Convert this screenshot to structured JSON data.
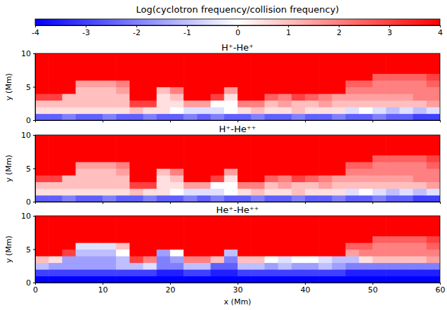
{
  "chart_data": {
    "type": "heatmap",
    "colorbar": {
      "title": "Log(cyclotron frequency/collision frequency)",
      "range": [
        -4,
        4
      ],
      "ticks": [
        -4,
        -3,
        -2,
        -1,
        0,
        1,
        2,
        3,
        4
      ]
    },
    "x_label": "x (Mm)",
    "y_label": "y (Mm)",
    "xlim": [
      0,
      60
    ],
    "xticks": [
      0,
      10,
      20,
      30,
      40,
      50,
      60
    ],
    "ylim": [
      0,
      10
    ],
    "yticks": [
      0,
      5,
      10
    ],
    "x_edges": [
      0,
      2,
      4,
      6,
      8,
      10,
      12,
      14,
      16,
      18,
      20,
      22,
      24,
      26,
      28,
      30,
      32,
      34,
      36,
      38,
      40,
      42,
      44,
      46,
      48,
      50,
      52,
      54,
      56,
      58,
      60
    ],
    "y_edges": [
      0,
      1,
      2,
      3,
      4,
      5,
      6,
      7,
      8,
      9,
      10
    ],
    "panels": [
      {
        "title": "H⁺-He⁺",
        "cells": [
          [
            -2.5,
            -2.5,
            -2,
            -2.5,
            -2.5,
            -2,
            -2.5,
            -2.5,
            -2,
            -2.5,
            -2.5,
            -2,
            -2.5,
            -2,
            -2.5,
            -2.5,
            -2,
            -2.5,
            -2.5,
            -2,
            -2.5,
            -2.5,
            -2,
            -2.5,
            -2.5,
            -2,
            -2.5,
            -2.5,
            -3,
            -3
          ],
          [
            0.5,
            0.5,
            0.5,
            0.5,
            0.5,
            0.5,
            0.5,
            1,
            0.5,
            0.5,
            0,
            -0.5,
            -0.5,
            -0.5,
            0,
            0.5,
            1,
            0.5,
            0.5,
            1,
            0.5,
            0.5,
            0.5,
            -0.5,
            0,
            -0.5,
            -1,
            -0.5,
            -1,
            -0.5
          ],
          [
            1,
            1,
            1,
            1,
            1,
            1,
            1,
            3,
            3,
            0.5,
            0.5,
            1.5,
            1.5,
            0,
            0,
            2,
            2,
            1,
            1.5,
            1,
            1,
            1.5,
            1,
            1,
            1,
            1,
            1,
            1,
            1,
            1.5
          ],
          [
            3,
            3,
            1,
            1,
            1,
            1,
            1,
            4,
            4,
            0.5,
            1,
            4,
            4,
            3,
            0.5,
            4,
            4,
            2.5,
            2,
            3,
            2.5,
            2,
            1.5,
            1.5,
            1.5,
            1.5,
            1.5,
            1.5,
            2,
            2
          ],
          [
            4,
            4,
            4,
            1,
            1,
            1,
            1.5,
            4,
            4,
            1,
            2,
            4,
            4,
            4,
            1.5,
            4,
            4,
            4,
            4,
            4,
            4,
            4,
            4,
            2,
            2,
            2,
            2,
            2,
            2,
            2
          ],
          [
            4,
            4,
            4,
            1.5,
            1.5,
            1.5,
            2,
            4,
            4,
            4,
            4,
            4,
            4,
            4,
            4,
            4,
            4,
            4,
            4,
            4,
            4,
            4,
            4,
            2.5,
            2.5,
            2,
            2,
            2,
            2,
            2.5
          ],
          [
            4,
            4,
            4,
            4,
            4,
            4,
            4,
            4,
            4,
            4,
            4,
            4,
            4,
            4,
            4,
            4,
            4,
            4,
            4,
            4,
            4,
            4,
            4,
            4,
            4,
            2.5,
            2.5,
            2.5,
            2.5,
            3
          ],
          [
            4,
            4,
            4,
            4,
            4,
            4,
            4,
            4,
            4,
            4,
            4,
            4,
            4,
            4,
            4,
            4,
            4,
            4,
            4,
            4,
            4,
            4,
            4,
            4,
            4,
            4,
            4,
            4,
            4,
            4
          ],
          [
            4,
            4,
            4,
            4,
            4,
            4,
            4,
            4,
            4,
            4,
            4,
            4,
            4,
            4,
            4,
            4,
            4,
            4,
            4,
            4,
            4,
            4,
            4,
            4,
            4,
            4,
            4,
            4,
            4,
            4
          ],
          [
            4,
            4,
            4,
            4,
            4,
            4,
            4,
            4,
            4,
            4,
            4,
            4,
            4,
            4,
            4,
            4,
            4,
            4,
            4,
            4,
            4,
            4,
            4,
            4,
            4,
            4,
            4,
            4,
            4,
            4
          ]
        ]
      },
      {
        "title": "H⁺-He⁺⁺",
        "cells": [
          [
            -2.5,
            -2.5,
            -2,
            -2.5,
            -2.5,
            -2,
            -2.5,
            -2.5,
            -2,
            -2.5,
            -2.5,
            -2,
            -2.5,
            -2,
            -2.5,
            -2.5,
            -2,
            -2.5,
            -2.5,
            -2,
            -2.5,
            -2.5,
            -2,
            -2.5,
            -2.5,
            -2,
            -2.5,
            -2.5,
            -3,
            -3
          ],
          [
            0.5,
            0.5,
            0.5,
            0.5,
            0.5,
            0.5,
            0.5,
            1,
            0.5,
            0.5,
            0,
            -0.5,
            -0.5,
            -0.5,
            0,
            0.5,
            1,
            0.5,
            0.5,
            1,
            0.5,
            0.5,
            0.5,
            -0.5,
            0,
            -0.5,
            -1,
            -0.5,
            -1,
            -0.5
          ],
          [
            1,
            1,
            1,
            1,
            1,
            1,
            1,
            3,
            3,
            0.5,
            0.5,
            1.5,
            1.5,
            0,
            0,
            2,
            2,
            1,
            1.5,
            1,
            1,
            1.5,
            1,
            1,
            1,
            1,
            1,
            1,
            1,
            1.5
          ],
          [
            3,
            3,
            1,
            1,
            1,
            1,
            1,
            4,
            4,
            0.5,
            1,
            4,
            4,
            3,
            0.5,
            4,
            4,
            2.5,
            2,
            3,
            2.5,
            2,
            1.5,
            1.5,
            1.5,
            1.5,
            1.5,
            1.5,
            2,
            2
          ],
          [
            4,
            4,
            4,
            1,
            1,
            1,
            1.5,
            4,
            4,
            1,
            2,
            4,
            4,
            4,
            1.5,
            4,
            4,
            4,
            4,
            4,
            4,
            4,
            4,
            2,
            2,
            2,
            2,
            2,
            2,
            2
          ],
          [
            4,
            4,
            4,
            1.5,
            1.5,
            1.5,
            2,
            4,
            4,
            4,
            4,
            4,
            4,
            4,
            4,
            4,
            4,
            4,
            4,
            4,
            4,
            4,
            4,
            2.5,
            2.5,
            2,
            2,
            2,
            2,
            2.5
          ],
          [
            4,
            4,
            4,
            4,
            4,
            4,
            4,
            4,
            4,
            4,
            4,
            4,
            4,
            4,
            4,
            4,
            4,
            4,
            4,
            4,
            4,
            4,
            4,
            4,
            4,
            2.5,
            2.5,
            2.5,
            2.5,
            3
          ],
          [
            4,
            4,
            4,
            4,
            4,
            4,
            4,
            4,
            4,
            4,
            4,
            4,
            4,
            4,
            4,
            4,
            4,
            4,
            4,
            4,
            4,
            4,
            4,
            4,
            4,
            4,
            4,
            4,
            4,
            4
          ],
          [
            4,
            4,
            4,
            4,
            4,
            4,
            4,
            4,
            4,
            4,
            4,
            4,
            4,
            4,
            4,
            4,
            4,
            4,
            4,
            4,
            4,
            4,
            4,
            4,
            4,
            4,
            4,
            4,
            4,
            4
          ],
          [
            4,
            4,
            4,
            4,
            4,
            4,
            4,
            4,
            4,
            4,
            4,
            4,
            4,
            4,
            4,
            4,
            4,
            4,
            4,
            4,
            4,
            4,
            4,
            4,
            4,
            4,
            4,
            4,
            4,
            4
          ]
        ]
      },
      {
        "title": "He⁺-He⁺⁺",
        "cells": [
          [
            -4,
            -4,
            -4,
            -4,
            -4,
            -4,
            -4,
            -4,
            -4,
            -4,
            -4,
            -4,
            -4,
            -4,
            -4,
            -4,
            -4,
            -4,
            -4,
            -4,
            -4,
            -4,
            -4,
            -4,
            -4,
            -4,
            -4,
            -4,
            -4,
            -4
          ],
          [
            -3,
            -3,
            -3,
            -3,
            -3,
            -3,
            -3,
            -3,
            -3,
            -3.5,
            -3.5,
            -3,
            -3,
            -3.5,
            -3.5,
            -3,
            -3,
            -3,
            -3,
            -3,
            -3,
            -3,
            -3,
            -3.5,
            -3.5,
            -3.5,
            -3.5,
            -3.5,
            -3.5,
            -3.5
          ],
          [
            -1,
            -1.5,
            -1.5,
            -1.5,
            -1.5,
            -1.5,
            -1,
            -1,
            -0.5,
            -2,
            -2,
            -1,
            -1,
            -2.5,
            -2.5,
            -1,
            -1,
            -1.5,
            -1,
            -1.5,
            -1.5,
            -1,
            -1.5,
            -2,
            -2,
            -2,
            -2,
            -2,
            -2,
            -2
          ],
          [
            1,
            0.5,
            -1.5,
            -1.5,
            -1.5,
            -1.5,
            -1,
            3,
            2,
            -2,
            -1.5,
            2,
            2,
            1,
            -2,
            1,
            1,
            0,
            -0.5,
            0,
            0,
            -0.5,
            -1,
            -1,
            0.5,
            1,
            1,
            1,
            1,
            1.5
          ],
          [
            4,
            4,
            3,
            -1,
            -1,
            -1,
            0,
            4,
            4,
            -1.5,
            0,
            4,
            4,
            4,
            -1,
            4,
            4,
            4,
            4,
            4,
            4,
            4,
            4,
            1.5,
            2,
            2,
            2,
            2,
            2,
            2
          ],
          [
            4,
            4,
            4,
            -0.5,
            -0.5,
            -0.5,
            1,
            4,
            4,
            4,
            4,
            4,
            4,
            4,
            4,
            4,
            4,
            4,
            4,
            4,
            4,
            4,
            4,
            2.5,
            2.5,
            2,
            2,
            2,
            2,
            2.5
          ],
          [
            4,
            4,
            4,
            4,
            4,
            4,
            4,
            4,
            4,
            4,
            4,
            4,
            4,
            4,
            4,
            4,
            4,
            4,
            4,
            4,
            4,
            4,
            4,
            4,
            4,
            2.5,
            2.5,
            2.5,
            2.5,
            3
          ],
          [
            4,
            4,
            4,
            4,
            4,
            4,
            4,
            4,
            4,
            4,
            4,
            4,
            4,
            4,
            4,
            4,
            4,
            4,
            4,
            4,
            4,
            4,
            4,
            4,
            4,
            4,
            4,
            4,
            4,
            4
          ],
          [
            4,
            4,
            4,
            4,
            4,
            4,
            4,
            4,
            4,
            4,
            4,
            4,
            4,
            4,
            4,
            4,
            4,
            4,
            4,
            4,
            4,
            4,
            4,
            4,
            4,
            4,
            4,
            4,
            4,
            4
          ],
          [
            4,
            4,
            4,
            4,
            4,
            4,
            4,
            4,
            4,
            4,
            4,
            4,
            4,
            4,
            4,
            4,
            4,
            4,
            4,
            4,
            4,
            4,
            4,
            4,
            4,
            4,
            4,
            4,
            4,
            4
          ]
        ]
      }
    ]
  }
}
